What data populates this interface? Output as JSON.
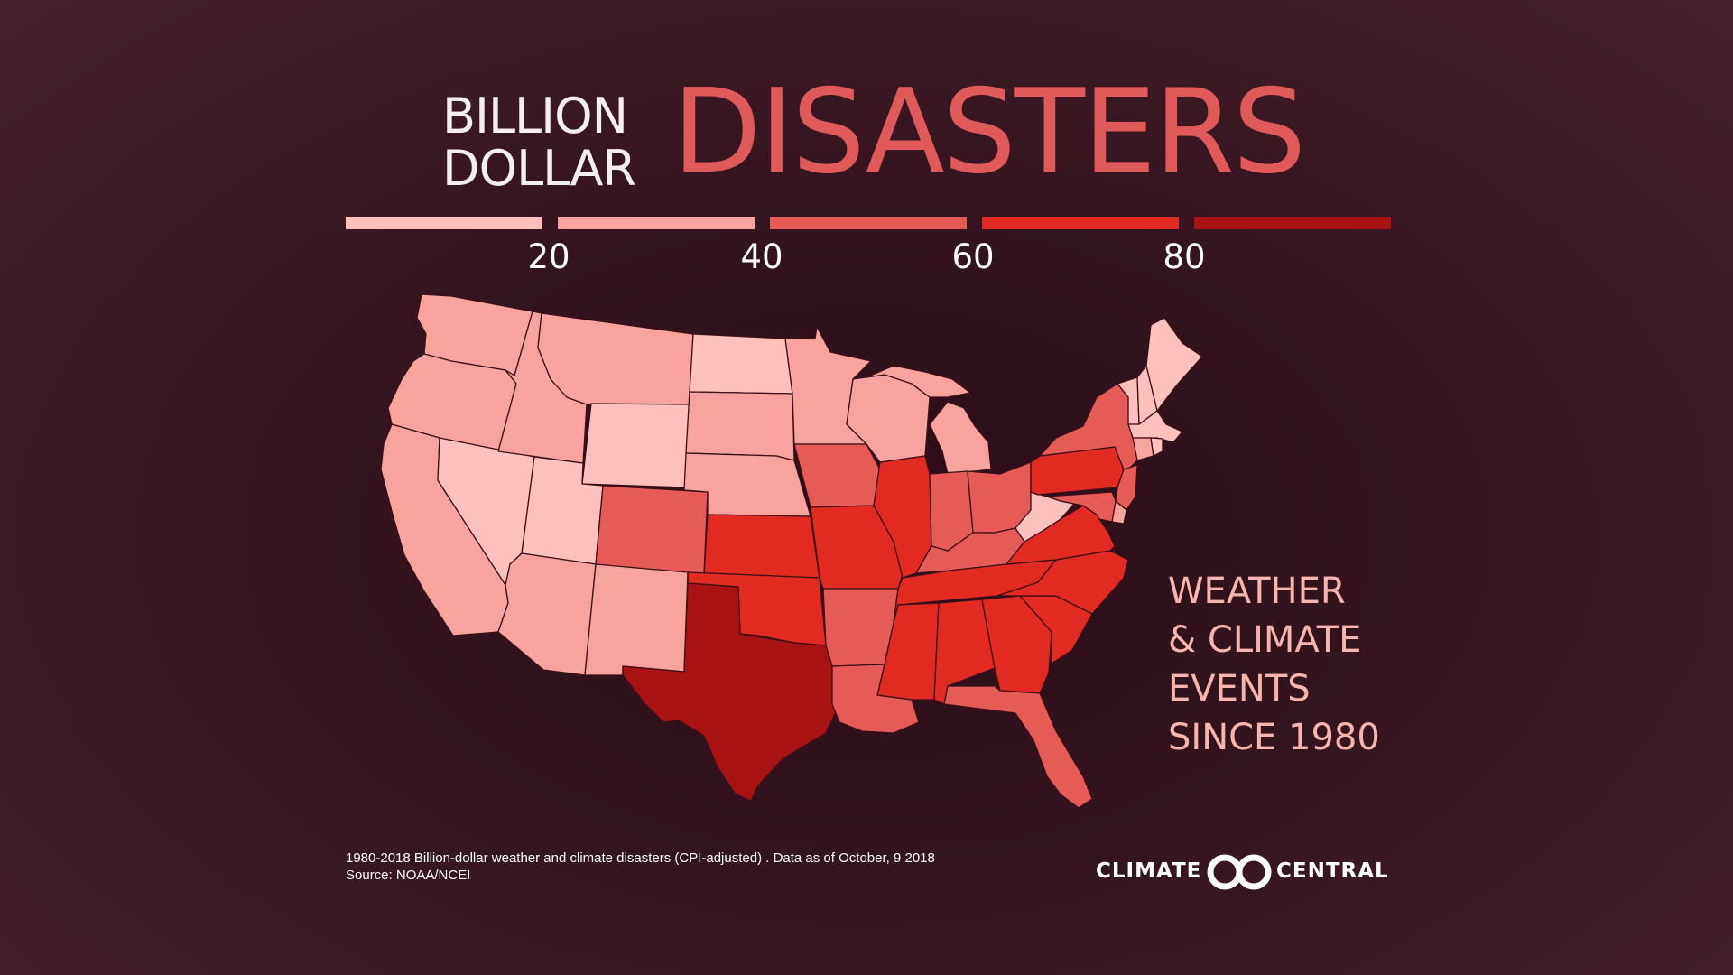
{
  "title": {
    "line1": "BILLION",
    "line2": "DOLLAR",
    "main": "DISASTERS"
  },
  "legend": {
    "colors": [
      "#fcc0bd",
      "#f8a39d",
      "#e65b55",
      "#e02a22",
      "#a81212"
    ],
    "ticks": [
      "20",
      "40",
      "60",
      "80"
    ]
  },
  "subtitle": {
    "lines": [
      "WEATHER",
      "& CLIMATE",
      "EVENTS",
      "SINCE 1980"
    ]
  },
  "footnote": {
    "line1": "1980-2018 Billion-dollar weather and climate disasters (CPI-adjusted) . Data as of October, 9 2018",
    "line2": "Source: NOAA/NCEI"
  },
  "brand": {
    "left": "CLIMATE",
    "right": "CENTRAL"
  },
  "map": {
    "bins": {
      "WA": 1,
      "OR": 1,
      "CA": 1,
      "NV": 0,
      "ID": 1,
      "MT": 1,
      "WY": 0,
      "UT": 0,
      "CO": 2,
      "AZ": 1,
      "NM": 1,
      "ND": 0,
      "SD": 1,
      "NE": 1,
      "KS": 3,
      "OK": 3,
      "TX": 4,
      "MN": 1,
      "IA": 2,
      "MO": 3,
      "AR": 2,
      "LA": 2,
      "WI": 1,
      "IL": 3,
      "MI": 1,
      "IN": 2,
      "OH": 2,
      "KY": 2,
      "TN": 3,
      "MS": 3,
      "AL": 3,
      "GA": 3,
      "FL": 2,
      "SC": 3,
      "NC": 3,
      "VA": 3,
      "WV": 0,
      "PA": 3,
      "NY": 2,
      "VT": 0,
      "NH": 0,
      "ME": 0,
      "MA": 0,
      "RI": 0,
      "CT": 1,
      "NJ": 2,
      "DE": 1,
      "MD": 2
    }
  }
}
